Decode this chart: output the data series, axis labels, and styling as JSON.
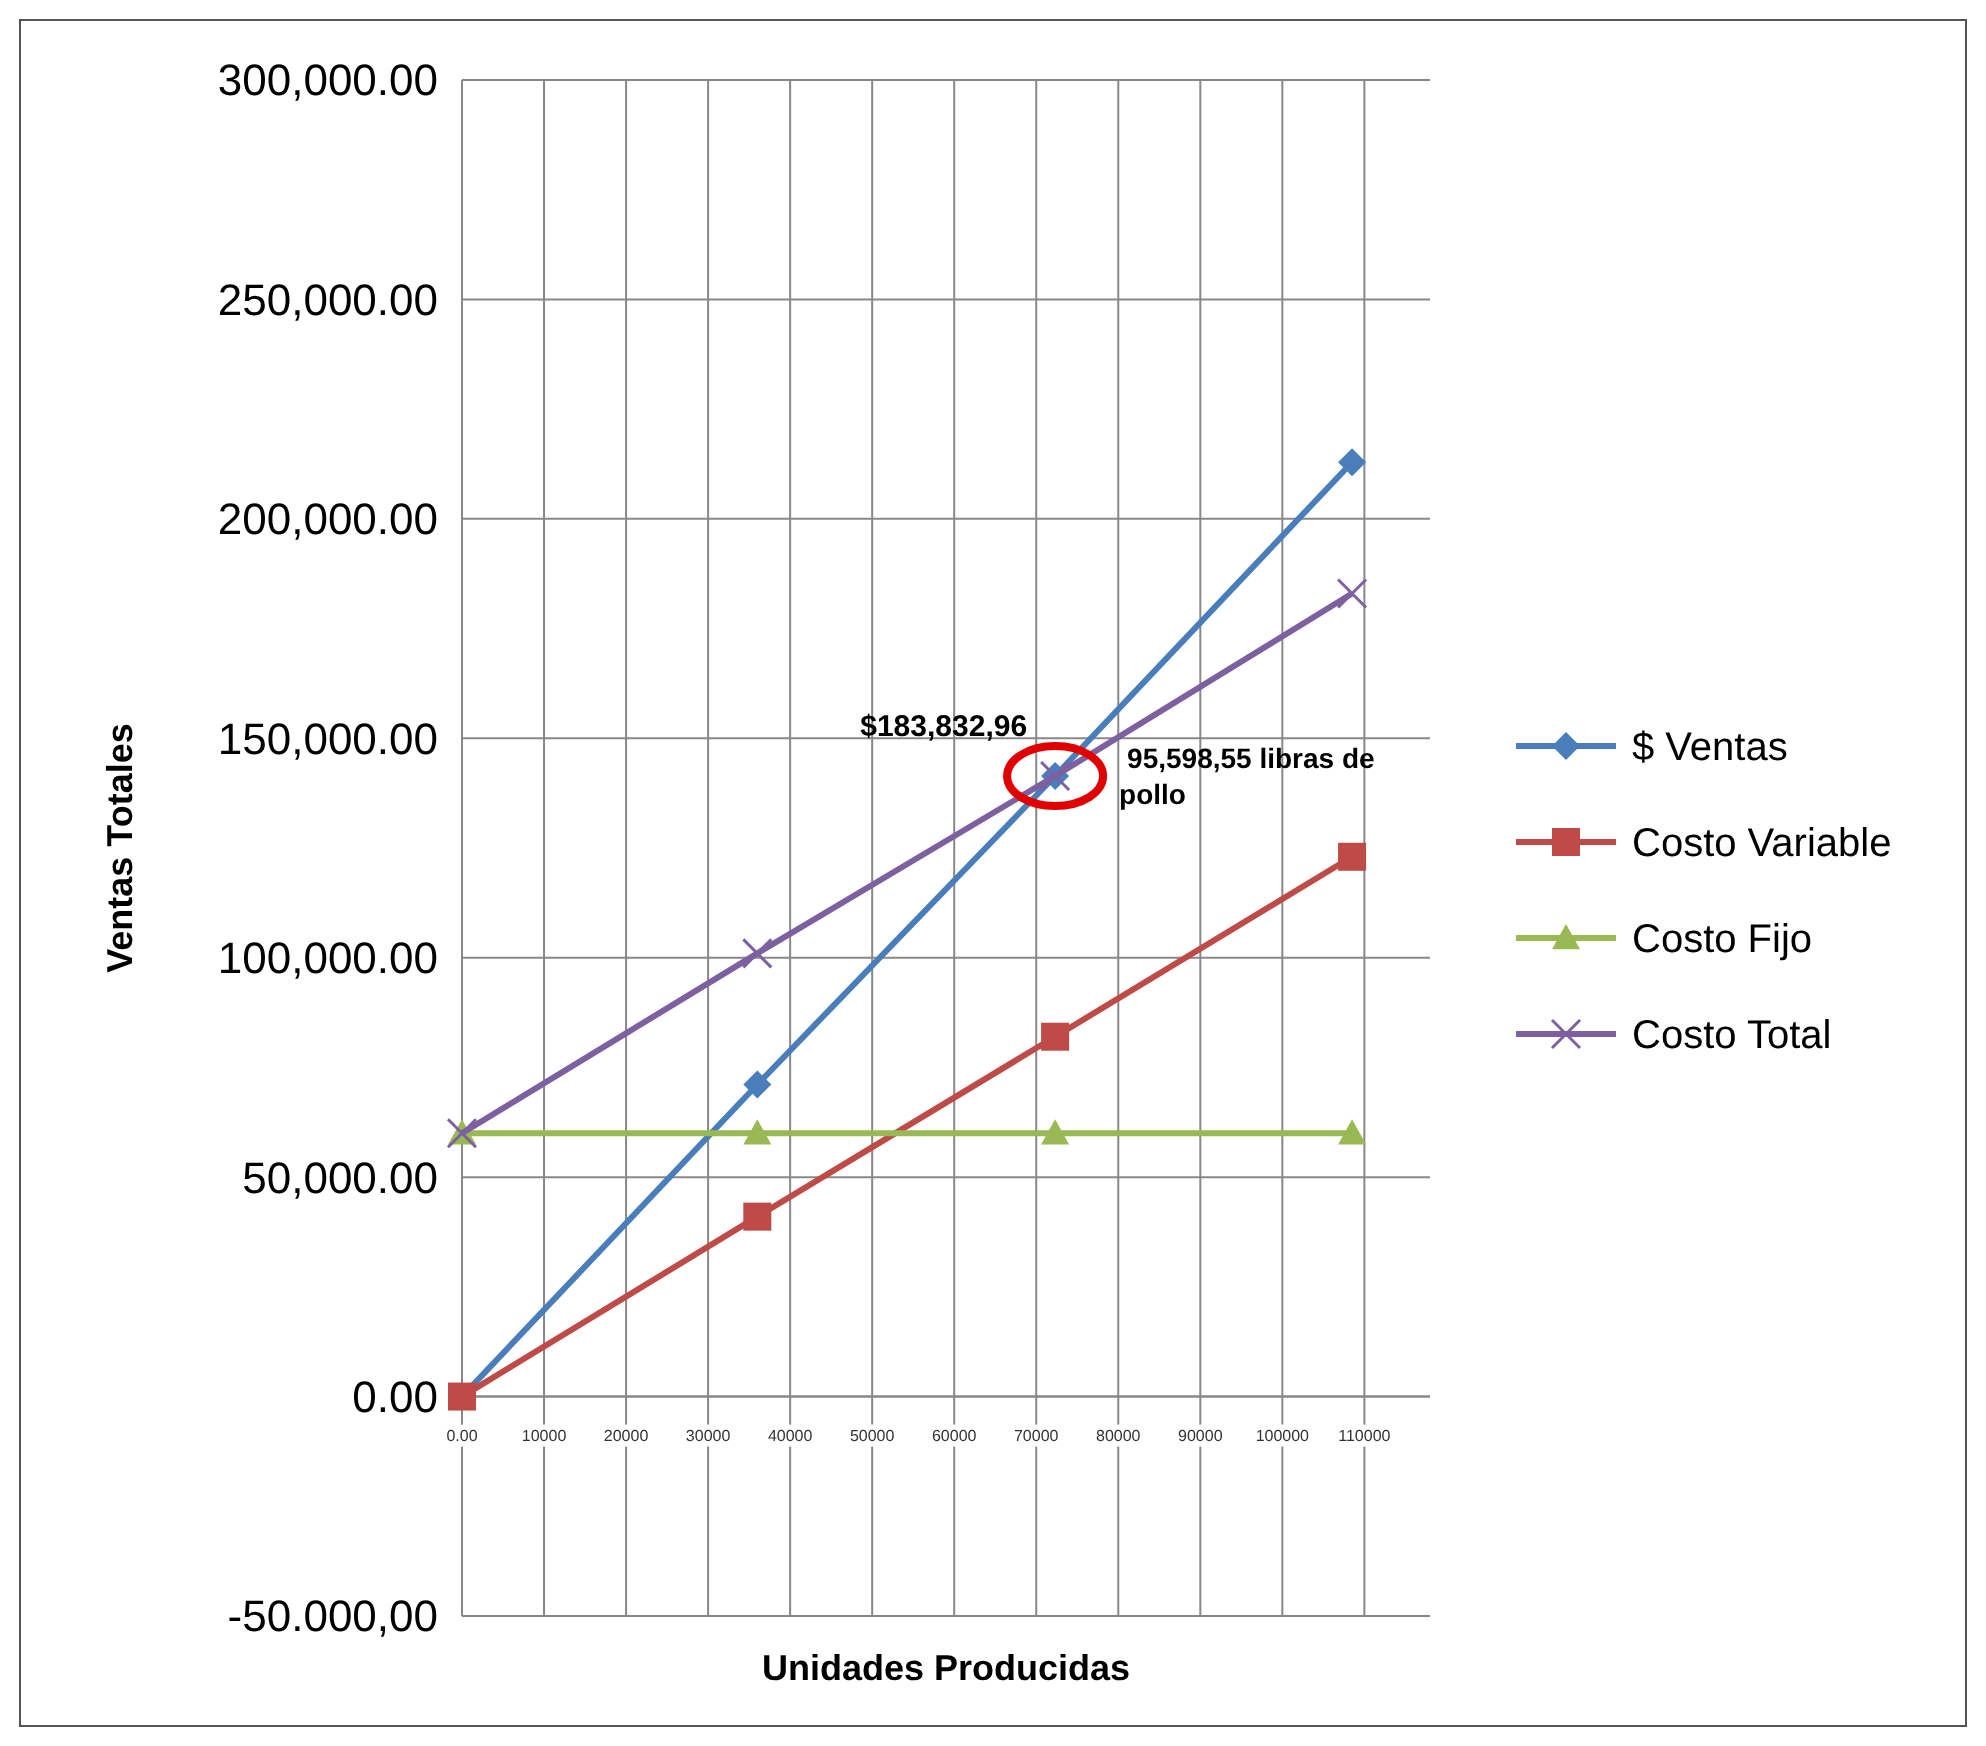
{
  "chart_data": {
    "type": "line",
    "xlabel": "Unidades Producidas",
    "ylabel": "Ventas Totales",
    "xlim": [
      0,
      118000
    ],
    "xticks": [
      {
        "value": 0,
        "label": "0.00"
      },
      10000,
      20000,
      30000,
      40000,
      50000,
      60000,
      70000,
      80000,
      90000,
      100000,
      110000
    ],
    "ylim": [
      -50000,
      300000
    ],
    "yticks": [
      {
        "value": -50000,
        "label": "-50.000,00"
      },
      {
        "value": 0,
        "label": "0.00"
      },
      {
        "value": 50000,
        "label": "50,000.00"
      },
      {
        "value": 100000,
        "label": "100,000.00"
      },
      {
        "value": 150000,
        "label": "150,000.00"
      },
      {
        "value": 200000,
        "label": "200,000.00"
      },
      {
        "value": 250000,
        "label": "250,000.00"
      },
      {
        "value": 300000,
        "label": "300,000.00"
      }
    ],
    "x": [
      0,
      36000,
      72300,
      108500
    ],
    "series": [
      {
        "name": "$ Ventas",
        "color": "#4a7ebb",
        "marker": "diamond",
        "values": [
          0,
          71100,
          141400,
          212900
        ]
      },
      {
        "name": "Costo Variable",
        "color": "#be4b48",
        "marker": "square",
        "values": [
          0,
          41000,
          82000,
          123000
        ]
      },
      {
        "name": "Costo Fijo",
        "color": "#98b954",
        "marker": "triangle",
        "values": [
          60000,
          60000,
          60000,
          60000
        ]
      },
      {
        "name": "Costo Total",
        "color": "#7d60a0",
        "marker": "cross",
        "values": [
          60000,
          101000,
          141400,
          183000
        ]
      }
    ],
    "annotations": [
      {
        "text": "$183,832,96",
        "x": 72300,
        "y": 141400
      },
      {
        "text": "95,598,55 libras de pollo",
        "x": 72300,
        "y": 141400
      }
    ],
    "grid": true,
    "legend": "right"
  }
}
